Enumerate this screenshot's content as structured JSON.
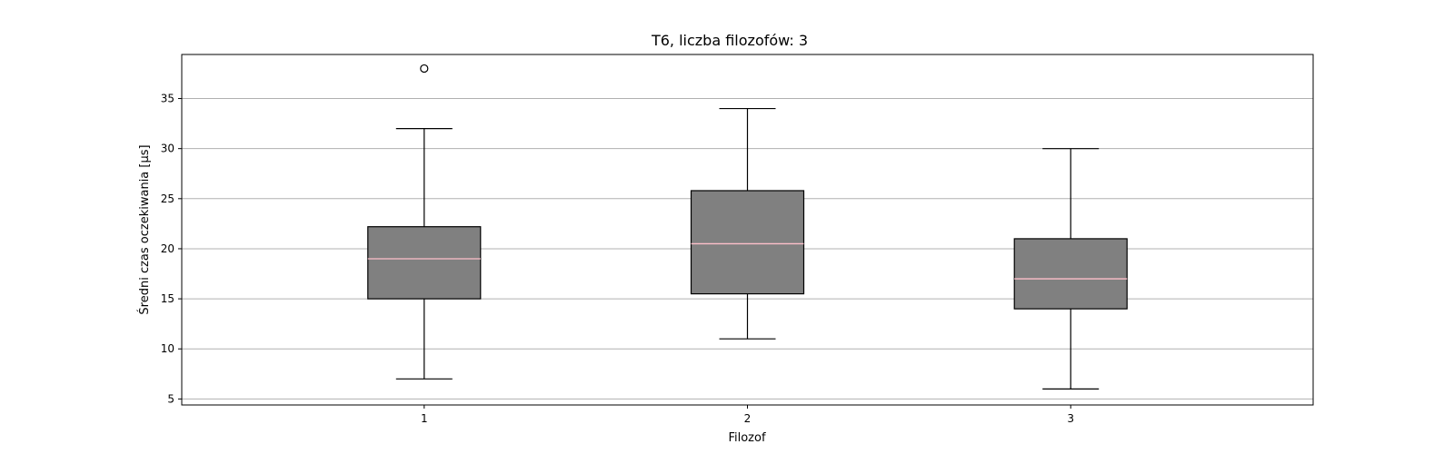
{
  "chart_data": {
    "type": "box",
    "title": "T6, liczba filozofów: 3",
    "xlabel": "Filozof",
    "ylabel": "Średni czas oczekiwania [µs]",
    "categories": [
      "1",
      "2",
      "3"
    ],
    "ylim": [
      4.4,
      39.4
    ],
    "yticks": [
      5,
      10,
      15,
      20,
      25,
      30,
      35
    ],
    "grid": "horizontal",
    "colors": {
      "box": "#808080",
      "median": "#ffc0cb",
      "grid": "#b0b0b0",
      "edge": "#000000"
    },
    "boxes": [
      {
        "category": "1",
        "whisker_low": 7,
        "q1": 15,
        "median": 19,
        "q3": 22.2,
        "whisker_high": 32,
        "outliers": [
          38
        ]
      },
      {
        "category": "2",
        "whisker_low": 11,
        "q1": 15.5,
        "median": 20.5,
        "q3": 25.8,
        "whisker_high": 34,
        "outliers": []
      },
      {
        "category": "3",
        "whisker_low": 6,
        "q1": 14,
        "median": 17,
        "q3": 21,
        "whisker_high": 30,
        "outliers": []
      }
    ]
  }
}
